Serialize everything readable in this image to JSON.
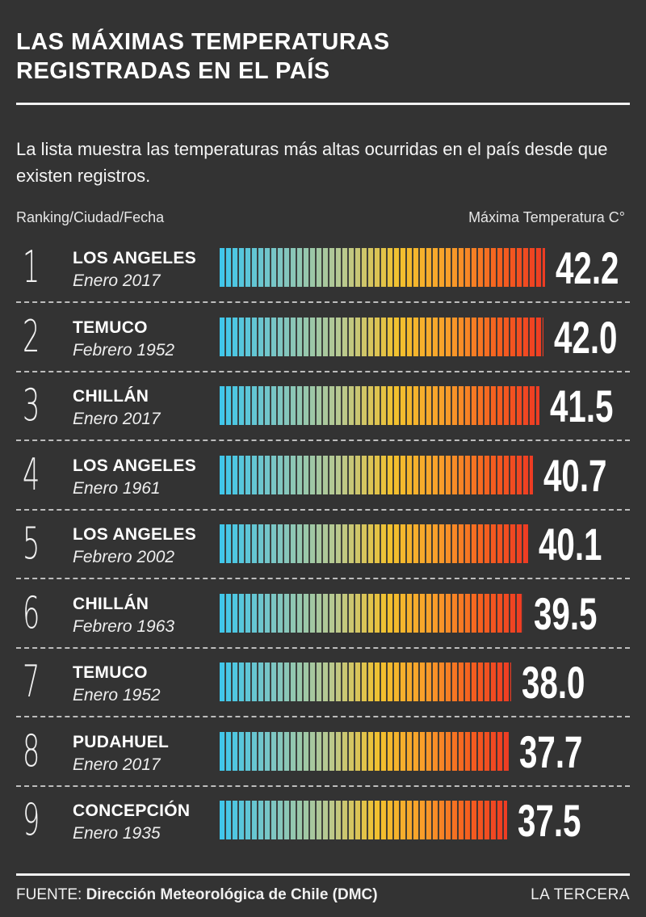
{
  "title_line1": "LAS MÁXIMAS TEMPERATURAS",
  "title_line2": "REGISTRADAS EN EL PAÍS",
  "subtitle": "La lista muestra las temperaturas más altas ocurridas en el país desde que existen registros.",
  "column_left": "Ranking/Ciudad/Fecha",
  "column_right": "Máxima Temperatura C°",
  "source_prefix": "FUENTE:",
  "source_text": "Dirección Meteorológica de Chile (DMC)",
  "brand": "LA TERCERA",
  "colors": {
    "background": "#333333",
    "bar_start": "#3ec7ec",
    "bar_mid": "#f2c12e",
    "bar_end": "#ee3b23"
  },
  "chart_data": {
    "type": "bar",
    "orientation": "horizontal",
    "title": "LAS MÁXIMAS TEMPERATURAS REGISTRADAS EN EL PAÍS",
    "ylabel": "Máxima Temperatura C°",
    "rows": [
      {
        "rank": "1",
        "city": "LOS ANGELES",
        "date": "Enero 2017",
        "value": 42.2,
        "label": "42.2"
      },
      {
        "rank": "2",
        "city": "TEMUCO",
        "date": "Febrero 1952",
        "value": 42.0,
        "label": "42.0"
      },
      {
        "rank": "3",
        "city": "CHILLÁN",
        "date": "Enero 2017",
        "value": 41.5,
        "label": "41.5"
      },
      {
        "rank": "4",
        "city": "LOS ANGELES",
        "date": "Enero 1961",
        "value": 40.7,
        "label": "40.7"
      },
      {
        "rank": "5",
        "city": "LOS ANGELES",
        "date": "Febrero 2002",
        "value": 40.1,
        "label": "40.1"
      },
      {
        "rank": "6",
        "city": "CHILLÁN",
        "date": "Febrero 1963",
        "value": 39.5,
        "label": "39.5"
      },
      {
        "rank": "7",
        "city": "TEMUCO",
        "date": "Enero 1952",
        "value": 38.0,
        "label": "38.0"
      },
      {
        "rank": "8",
        "city": "PUDAHUEL",
        "date": "Enero 2017",
        "value": 37.7,
        "label": "37.7"
      },
      {
        "rank": "9",
        "city": "CONCEPCIÓN",
        "date": "Enero 1935",
        "value": 37.5,
        "label": "37.5"
      }
    ]
  }
}
